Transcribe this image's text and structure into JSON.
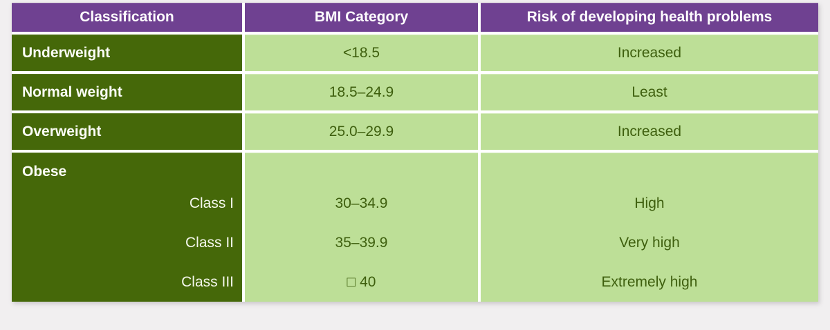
{
  "table": {
    "headers": {
      "classification": "Classification",
      "bmi_category": "BMI Category",
      "risk": "Risk of developing health problems"
    },
    "rows": [
      {
        "classification": "Underweight",
        "bmi": "<18.5",
        "risk": "Increased"
      },
      {
        "classification": "Normal weight",
        "bmi": "18.5–24.9",
        "risk": "Least"
      },
      {
        "classification": "Overweight",
        "bmi": "25.0–29.9",
        "risk": "Increased"
      }
    ],
    "obese": {
      "label": "Obese",
      "classes": [
        {
          "label": "Class I",
          "bmi": "30–34.9",
          "risk": "High"
        },
        {
          "label": "Class II",
          "bmi": "35–39.9",
          "risk": "Very high"
        },
        {
          "label": "Class III",
          "bmi": "□ 40",
          "risk": "Extremely high"
        }
      ]
    },
    "colors": {
      "header_bg": "#6f4191",
      "classification_bg": "#456809",
      "value_cell_bg": "#bddf97",
      "value_text": "#3e5f0e",
      "header_text": "#fdfcfd",
      "grid_gap": "#ffffff",
      "page_bg": "#f1eff0"
    }
  },
  "chart_data": {
    "type": "table",
    "columns": [
      "Classification",
      "BMI Category",
      "Risk of developing health problems"
    ],
    "rows": [
      [
        "Underweight",
        "<18.5",
        "Increased"
      ],
      [
        "Normal weight",
        "18.5–24.9",
        "Least"
      ],
      [
        "Overweight",
        "25.0–29.9",
        "Increased"
      ],
      [
        "Obese — Class I",
        "30–34.9",
        "High"
      ],
      [
        "Obese — Class II",
        "35–39.9",
        "Very high"
      ],
      [
        "Obese — Class III",
        "□ 40",
        "Extremely high"
      ]
    ],
    "title": "",
    "legend": "none",
    "grid": "white gaps between cells"
  }
}
